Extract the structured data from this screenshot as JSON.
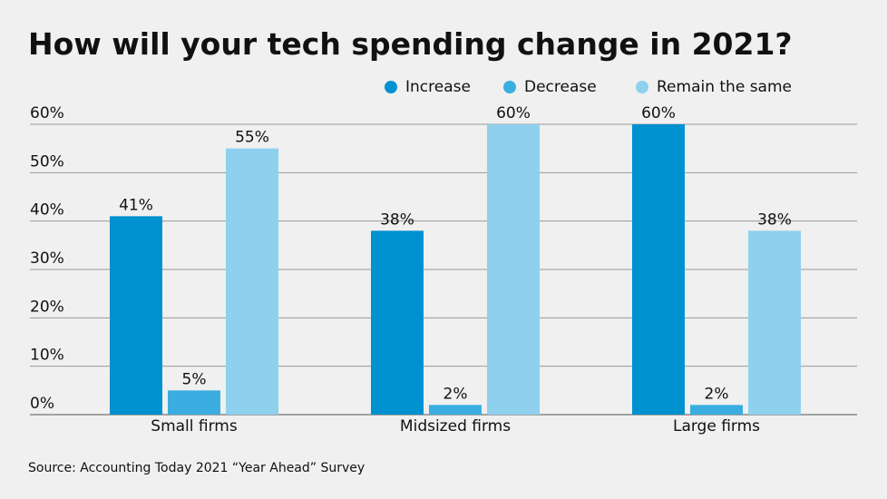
{
  "chart_data": {
    "type": "bar",
    "title": "How will your tech spending change in 2021?",
    "categories": [
      "Small firms",
      "Midsized firms",
      "Large firms"
    ],
    "series": [
      {
        "name": "Increase",
        "color": "#0091d0",
        "values": [
          41,
          38,
          60
        ],
        "value_labels": [
          "41%",
          "38%",
          "60%"
        ]
      },
      {
        "name": "Decrease",
        "color": "#3aaee0",
        "values": [
          5,
          2,
          2
        ],
        "value_labels": [
          "5%",
          "2%",
          "2%"
        ]
      },
      {
        "name": "Remain the same",
        "color": "#8fd0ee",
        "values": [
          55,
          60,
          38
        ],
        "value_labels": [
          "55%",
          "60%",
          "38%"
        ]
      }
    ],
    "ylim": [
      0,
      60
    ],
    "yticks": [
      {
        "value": 0,
        "label": "0%"
      },
      {
        "value": 10,
        "label": "10%"
      },
      {
        "value": 20,
        "label": "20%"
      },
      {
        "value": 30,
        "label": "30%"
      },
      {
        "value": 40,
        "label": "40%"
      },
      {
        "value": 50,
        "label": "50%"
      },
      {
        "value": 60,
        "label": "60%"
      }
    ],
    "grid": true,
    "legend": "top-right",
    "source": "Source: Accounting Today 2021 “Year Ahead” Survey"
  }
}
